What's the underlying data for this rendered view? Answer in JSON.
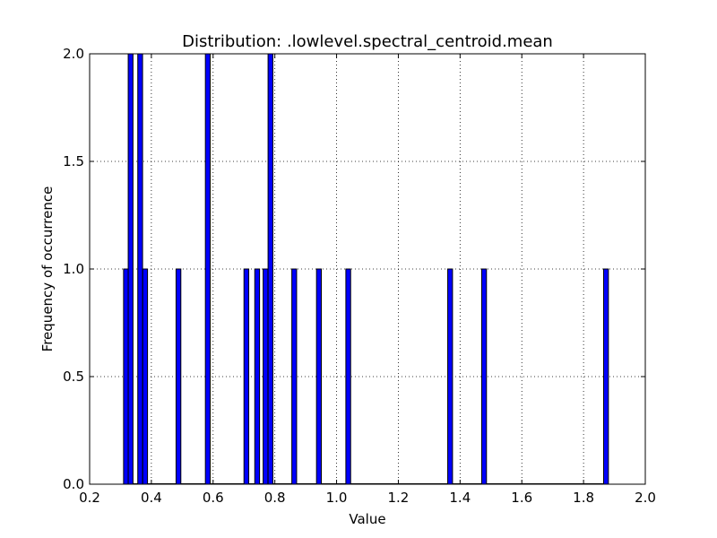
{
  "chart_data": {
    "type": "bar",
    "title": "Distribution: .lowlevel.spectral_centroid.mean",
    "xlabel": "Value",
    "ylabel": "Frequency of occurrence",
    "xlim": [
      0.2,
      2.0
    ],
    "ylim": [
      0.0,
      2.0
    ],
    "xticks": [
      "0.2",
      "0.4",
      "0.6",
      "0.8",
      "1.0",
      "1.2",
      "1.4",
      "1.6",
      "1.8",
      "2.0"
    ],
    "yticks": [
      "0.0",
      "0.5",
      "1.0",
      "1.5",
      "2.0"
    ],
    "grid": true,
    "bin_width": 0.0155,
    "bins": [
      {
        "x": 0.31,
        "value": 1
      },
      {
        "x": 0.325,
        "value": 2
      },
      {
        "x": 0.356,
        "value": 2
      },
      {
        "x": 0.372,
        "value": 1
      },
      {
        "x": 0.48,
        "value": 1
      },
      {
        "x": 0.575,
        "value": 2
      },
      {
        "x": 0.7,
        "value": 1
      },
      {
        "x": 0.735,
        "value": 1
      },
      {
        "x": 0.762,
        "value": 1
      },
      {
        "x": 0.778,
        "value": 2
      },
      {
        "x": 0.855,
        "value": 1
      },
      {
        "x": 0.935,
        "value": 1
      },
      {
        "x": 1.03,
        "value": 1
      },
      {
        "x": 1.36,
        "value": 1
      },
      {
        "x": 1.47,
        "value": 1
      },
      {
        "x": 1.865,
        "value": 1
      }
    ],
    "bar_color": "#0000ff"
  }
}
